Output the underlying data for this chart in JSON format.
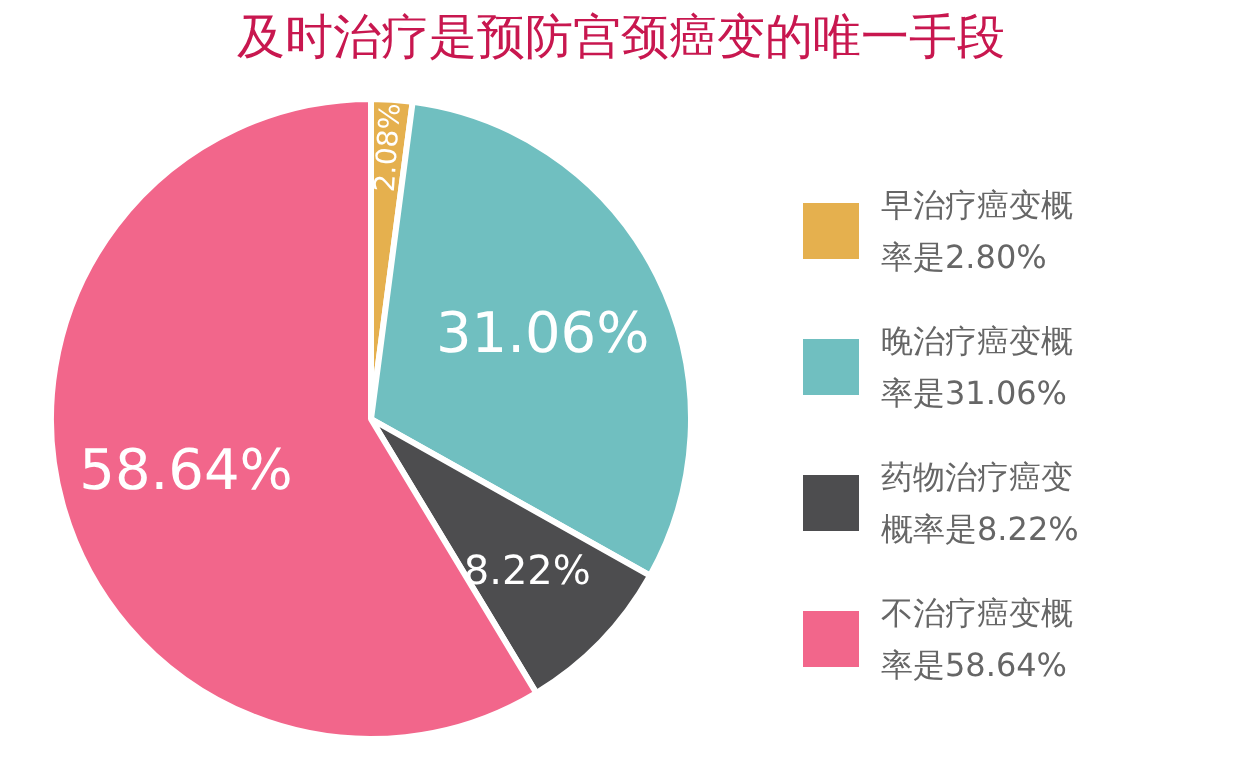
{
  "chart_data": {
    "type": "pie",
    "title": "及时治疗是预防宫颈癌变的唯一手段",
    "categories": [
      "早治疗癌变概率是2.80%",
      "晚治疗癌变概率是31.06%",
      "药物治疗癌变概率是8.22%",
      "不治疗癌变概率是58.64%"
    ],
    "values": [
      2.08,
      31.06,
      8.22,
      58.64
    ],
    "colors": [
      "#e5b04e",
      "#70bfc0",
      "#4d4d4f",
      "#f2668b"
    ],
    "value_labels": [
      "2.08%",
      "31.06%",
      "8.22%",
      "58.64%"
    ],
    "legend": "right"
  }
}
